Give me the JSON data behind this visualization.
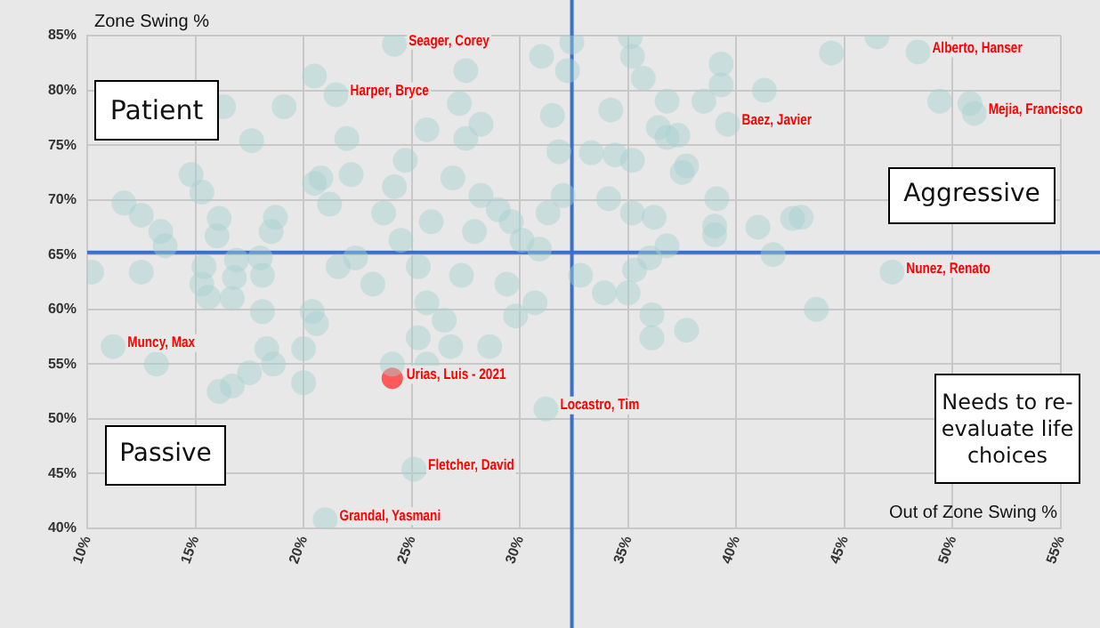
{
  "chart_data": {
    "type": "scatter",
    "xlabel": "Out of Zone Swing %",
    "ylabel": "Zone Swing %",
    "xlim": [
      10,
      55
    ],
    "ylim": [
      40,
      85
    ],
    "xticks": [
      {
        "value": 10,
        "label": "10%"
      },
      {
        "value": 15,
        "label": "15%"
      },
      {
        "value": 20,
        "label": "20%"
      },
      {
        "value": 25,
        "label": "25%"
      },
      {
        "value": 30,
        "label": "30%"
      },
      {
        "value": 35,
        "label": "35%"
      },
      {
        "value": 40,
        "label": "40%"
      },
      {
        "value": 45,
        "label": "45%"
      },
      {
        "value": 50,
        "label": "50%"
      },
      {
        "value": 55,
        "label": "55%"
      }
    ],
    "yticks": [
      {
        "value": 40,
        "label": "40%"
      },
      {
        "value": 45,
        "label": "45%"
      },
      {
        "value": 50,
        "label": "50%"
      },
      {
        "value": 55,
        "label": "55%"
      },
      {
        "value": 60,
        "label": "60%"
      },
      {
        "value": 65,
        "label": "65%"
      },
      {
        "value": 70,
        "label": "70%"
      },
      {
        "value": 75,
        "label": "75%"
      },
      {
        "value": 80,
        "label": "80%"
      },
      {
        "value": 85,
        "label": "85%"
      }
    ],
    "grid": true,
    "marker": "circle",
    "series": [
      {
        "color": "#a6d1d1",
        "x": [
          24.2,
          21.5,
          48.4,
          51.0,
          39.6,
          47.2,
          11.2,
          31.2,
          25.1,
          21.0,
          10.2,
          11.7,
          12.5,
          13.4,
          13.6,
          14.8,
          15.3,
          12.5,
          13.2,
          16.3,
          19.1,
          17.6,
          16.1,
          16.0,
          15.4,
          15.3,
          15.6,
          16.7,
          16.9,
          16.8,
          18.0,
          18.1,
          18.5,
          18.7,
          18.1,
          18.3,
          17.5,
          16.1,
          16.7,
          18.6,
          20.0,
          20.0,
          20.4,
          20.6,
          20.5,
          20.5,
          21.2,
          20.8,
          22.0,
          22.2,
          21.6,
          22.4,
          23.2,
          23.7,
          24.2,
          24.7,
          25.7,
          24.5,
          25.3,
          25.7,
          26.5,
          25.3,
          26.8,
          24.1,
          25.7,
          26.9,
          27.5,
          28.2,
          28.2,
          29.0,
          29.6,
          30.1,
          30.9,
          31.3,
          32.0,
          31.8,
          31.5,
          32.2,
          32.4,
          31.0,
          27.5,
          27.2,
          30.7,
          29.8,
          28.6,
          29.4,
          27.3,
          27.9,
          25.9,
          35.1,
          35.2,
          34.2,
          35.7,
          36.8,
          36.8,
          37.3,
          36.4,
          38.5,
          39.3,
          41.3,
          39.3,
          44.4,
          46.5,
          49.4,
          50.8,
          33.3,
          34.4,
          35.2,
          37.7,
          37.5,
          34.1,
          35.2,
          36.2,
          39.1,
          39.0,
          41.0,
          42.6,
          43.0,
          41.7,
          36.8,
          36.0,
          35.0,
          35.3,
          36.1,
          37.7,
          36.1,
          43.7,
          39.0,
          32.8,
          33.9
        ],
        "values": [
          84.2,
          79.6,
          83.5,
          77.9,
          76.9,
          63.4,
          56.6,
          50.9,
          45.4,
          40.8,
          63.4,
          69.7,
          68.6,
          67.1,
          65.8,
          72.3,
          70.7,
          63.4,
          55.0,
          78.5,
          78.5,
          75.4,
          68.3,
          66.7,
          63.9,
          62.3,
          61.1,
          61.0,
          64.5,
          62.9,
          64.7,
          63.1,
          67.1,
          68.4,
          59.8,
          56.4,
          54.2,
          52.5,
          53.0,
          55.0,
          56.4,
          53.3,
          59.8,
          58.7,
          81.3,
          71.5,
          69.6,
          72.0,
          75.6,
          72.3,
          63.9,
          64.7,
          62.3,
          68.8,
          71.2,
          73.6,
          76.4,
          66.3,
          63.9,
          60.6,
          59.0,
          57.4,
          56.6,
          55.0,
          55.0,
          72.0,
          75.6,
          76.9,
          70.4,
          69.1,
          68.0,
          66.3,
          65.5,
          68.8,
          70.4,
          74.4,
          77.7,
          81.8,
          84.4,
          83.1,
          81.8,
          78.8,
          60.6,
          59.4,
          56.6,
          62.3,
          63.1,
          67.1,
          68.0,
          84.9,
          83.1,
          78.2,
          81.1,
          79.0,
          75.7,
          75.9,
          76.6,
          79.0,
          80.5,
          80.0,
          82.4,
          83.4,
          84.9,
          79.0,
          78.8,
          74.3,
          74.1,
          73.6,
          73.1,
          72.5,
          70.1,
          68.8,
          68.4,
          70.1,
          66.8,
          67.5,
          68.3,
          68.4,
          65.0,
          65.8,
          64.7,
          61.5,
          63.6,
          59.5,
          58.1,
          57.4,
          60.0,
          67.6,
          63.1,
          61.5
        ]
      },
      {
        "color": "#ff5a5a",
        "x": [
          24.1
        ],
        "values": [
          53.7
        ]
      }
    ],
    "ref_lines": [
      {
        "axis": "x",
        "value": 32.4,
        "color": "#3a6fd0"
      },
      {
        "axis": "y",
        "value": 65.2,
        "color": "#3a6fd0"
      }
    ],
    "annotations": [
      {
        "text": "Seager, Corey",
        "x": 24.2,
        "y": 84.2
      },
      {
        "text": "Harper, Bryce",
        "x": 21.5,
        "y": 79.6
      },
      {
        "text": "Alberto, Hanser",
        "x": 48.4,
        "y": 83.5
      },
      {
        "text": "Mejia, Francisco",
        "x": 51.0,
        "y": 77.9
      },
      {
        "text": "Baez, Javier",
        "x": 39.6,
        "y": 76.9
      },
      {
        "text": "Nunez, Renato",
        "x": 47.2,
        "y": 63.4
      },
      {
        "text": "Muncy, Max",
        "x": 11.2,
        "y": 56.6
      },
      {
        "text": "Urias, Luis - 2021",
        "x": 24.1,
        "y": 53.7
      },
      {
        "text": "Locastro, Tim",
        "x": 31.2,
        "y": 50.9
      },
      {
        "text": "Fletcher, David",
        "x": 25.1,
        "y": 45.4
      },
      {
        "text": "Grandal, Yasmani",
        "x": 21.0,
        "y": 40.8
      },
      "Patient",
      "Aggressive",
      "Passive",
      "Needs to re-evaluate life choices"
    ]
  }
}
